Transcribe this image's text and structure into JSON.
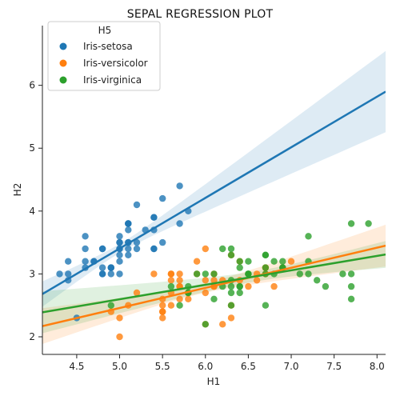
{
  "chart_data": {
    "type": "scatter",
    "title": "SEPAL REGRESSION PLOT",
    "xlabel": "H1",
    "ylabel": "H2",
    "xlim": [
      4.1,
      8.1
    ],
    "ylim": [
      1.72,
      6.95
    ],
    "xticks": [
      "4.5",
      "5.0",
      "5.5",
      "6.0",
      "6.5",
      "7.0",
      "7.5",
      "8.0"
    ],
    "yticks": [
      "2",
      "3",
      "4",
      "5",
      "6"
    ],
    "grid": false,
    "legend": {
      "title": "H5",
      "placement": "top-left"
    },
    "series": [
      {
        "name": "Iris-setosa",
        "color": "#1f77b4",
        "points": [
          [
            5.1,
            3.5
          ],
          [
            4.9,
            3.0
          ],
          [
            4.7,
            3.2
          ],
          [
            4.6,
            3.1
          ],
          [
            5.0,
            3.6
          ],
          [
            5.4,
            3.9
          ],
          [
            4.6,
            3.4
          ],
          [
            5.0,
            3.4
          ],
          [
            4.4,
            2.9
          ],
          [
            4.9,
            3.1
          ],
          [
            5.4,
            3.7
          ],
          [
            4.8,
            3.4
          ],
          [
            4.8,
            3.0
          ],
          [
            4.3,
            3.0
          ],
          [
            5.8,
            4.0
          ],
          [
            5.7,
            4.4
          ],
          [
            5.4,
            3.9
          ],
          [
            5.1,
            3.5
          ],
          [
            5.7,
            3.8
          ],
          [
            5.1,
            3.8
          ],
          [
            5.4,
            3.4
          ],
          [
            5.1,
            3.7
          ],
          [
            4.6,
            3.6
          ],
          [
            5.1,
            3.3
          ],
          [
            4.8,
            3.4
          ],
          [
            5.0,
            3.0
          ],
          [
            5.0,
            3.4
          ],
          [
            5.2,
            3.5
          ],
          [
            5.2,
            3.4
          ],
          [
            4.7,
            3.2
          ],
          [
            4.8,
            3.1
          ],
          [
            5.4,
            3.4
          ],
          [
            5.2,
            4.1
          ],
          [
            5.5,
            4.2
          ],
          [
            4.9,
            3.1
          ],
          [
            5.0,
            3.2
          ],
          [
            5.5,
            3.5
          ],
          [
            4.9,
            3.1
          ],
          [
            4.4,
            3.0
          ],
          [
            5.1,
            3.4
          ],
          [
            5.0,
            3.5
          ],
          [
            4.5,
            2.3
          ],
          [
            4.4,
            3.2
          ],
          [
            5.0,
            3.5
          ],
          [
            5.1,
            3.8
          ],
          [
            4.8,
            3.0
          ],
          [
            5.1,
            3.8
          ],
          [
            4.6,
            3.2
          ],
          [
            5.3,
            3.7
          ],
          [
            5.0,
            3.3
          ]
        ],
        "regression": {
          "x": [
            4.1,
            8.1
          ],
          "y": [
            2.68,
            5.9
          ]
        }
      },
      {
        "name": "Iris-versicolor",
        "color": "#ff7f0e",
        "points": [
          [
            7.0,
            3.2
          ],
          [
            6.4,
            3.2
          ],
          [
            6.9,
            3.1
          ],
          [
            5.5,
            2.3
          ],
          [
            6.5,
            2.8
          ],
          [
            5.7,
            2.8
          ],
          [
            6.3,
            3.3
          ],
          [
            4.9,
            2.4
          ],
          [
            6.6,
            2.9
          ],
          [
            5.2,
            2.7
          ],
          [
            5.0,
            2.0
          ],
          [
            5.9,
            3.0
          ],
          [
            6.0,
            2.2
          ],
          [
            6.1,
            2.9
          ],
          [
            5.6,
            2.9
          ],
          [
            6.7,
            3.1
          ],
          [
            5.6,
            3.0
          ],
          [
            5.8,
            2.7
          ],
          [
            6.2,
            2.2
          ],
          [
            5.6,
            2.5
          ],
          [
            5.9,
            3.2
          ],
          [
            6.1,
            2.8
          ],
          [
            6.3,
            2.5
          ],
          [
            6.1,
            2.8
          ],
          [
            6.4,
            2.9
          ],
          [
            6.6,
            3.0
          ],
          [
            6.8,
            2.8
          ],
          [
            6.7,
            3.0
          ],
          [
            6.0,
            2.9
          ],
          [
            5.7,
            2.6
          ],
          [
            5.5,
            2.4
          ],
          [
            5.5,
            2.4
          ],
          [
            5.8,
            2.7
          ],
          [
            6.0,
            2.7
          ],
          [
            5.4,
            3.0
          ],
          [
            6.0,
            3.4
          ],
          [
            6.7,
            3.1
          ],
          [
            6.3,
            2.3
          ],
          [
            5.6,
            3.0
          ],
          [
            5.5,
            2.5
          ],
          [
            5.5,
            2.6
          ],
          [
            6.1,
            3.0
          ],
          [
            5.8,
            2.6
          ],
          [
            5.0,
            2.3
          ],
          [
            5.6,
            2.7
          ],
          [
            5.7,
            3.0
          ],
          [
            5.7,
            2.9
          ],
          [
            6.2,
            2.9
          ],
          [
            5.1,
            2.5
          ],
          [
            5.7,
            2.8
          ]
        ],
        "regression": {
          "x": [
            4.1,
            8.1
          ],
          "y": [
            2.17,
            3.45
          ]
        }
      },
      {
        "name": "Iris-virginica",
        "color": "#2ca02c",
        "points": [
          [
            6.3,
            3.3
          ],
          [
            5.8,
            2.7
          ],
          [
            7.1,
            3.0
          ],
          [
            6.3,
            2.9
          ],
          [
            6.5,
            3.0
          ],
          [
            7.6,
            3.0
          ],
          [
            4.9,
            2.5
          ],
          [
            7.3,
            2.9
          ],
          [
            6.7,
            2.5
          ],
          [
            7.2,
            3.6
          ],
          [
            6.5,
            3.2
          ],
          [
            6.4,
            2.7
          ],
          [
            6.8,
            3.0
          ],
          [
            5.7,
            2.5
          ],
          [
            5.8,
            2.8
          ],
          [
            6.4,
            3.2
          ],
          [
            6.5,
            3.0
          ],
          [
            7.7,
            3.8
          ],
          [
            7.7,
            2.6
          ],
          [
            6.0,
            2.2
          ],
          [
            6.9,
            3.2
          ],
          [
            5.6,
            2.8
          ],
          [
            7.7,
            2.8
          ],
          [
            6.3,
            2.7
          ],
          [
            6.7,
            3.3
          ],
          [
            7.2,
            3.2
          ],
          [
            6.2,
            2.8
          ],
          [
            6.1,
            3.0
          ],
          [
            6.4,
            2.8
          ],
          [
            7.2,
            3.0
          ],
          [
            7.4,
            2.8
          ],
          [
            7.9,
            3.8
          ],
          [
            6.4,
            2.8
          ],
          [
            6.3,
            2.8
          ],
          [
            6.1,
            2.6
          ],
          [
            7.7,
            3.0
          ],
          [
            6.3,
            3.4
          ],
          [
            6.4,
            3.1
          ],
          [
            6.0,
            3.0
          ],
          [
            6.9,
            3.1
          ],
          [
            6.7,
            3.1
          ],
          [
            6.9,
            3.1
          ],
          [
            5.8,
            2.7
          ],
          [
            6.8,
            3.2
          ],
          [
            6.7,
            3.3
          ],
          [
            6.7,
            3.0
          ],
          [
            6.3,
            2.5
          ],
          [
            6.5,
            3.0
          ],
          [
            6.2,
            3.4
          ],
          [
            5.9,
            3.0
          ]
        ],
        "regression": {
          "x": [
            4.1,
            8.1
          ],
          "y": [
            2.39,
            3.31
          ]
        }
      }
    ]
  }
}
